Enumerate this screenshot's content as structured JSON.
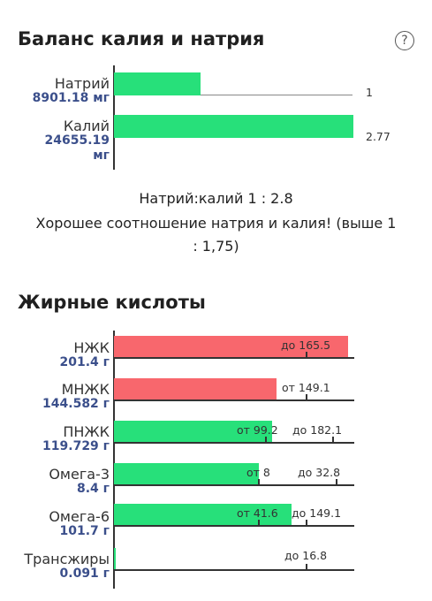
{
  "balance": {
    "title": "Баланс калия и натрия",
    "help_icon": "?",
    "rows": [
      {
        "name": "Натрий",
        "amount": "8901.18 мг",
        "ratio_label": "1"
      },
      {
        "name": "Калий",
        "amount_line1": "24655.19",
        "amount_line2": "мг",
        "ratio_label": "2.77"
      }
    ],
    "ratio_text": "Натрий:калий 1 : 2.8",
    "comment_line1": "Хорошее соотношение натрия и калия! (выше 1",
    "comment_line2": ": 1,75)"
  },
  "fatty": {
    "title": "Жирные кислоты",
    "rows": [
      {
        "name": "НЖК",
        "amount": "201.4 г",
        "limit_max": "до 165.5",
        "color": "#f8676d"
      },
      {
        "name": "МНЖК",
        "amount": "144.582 г",
        "limit_min": "от 149.1",
        "color": "#f8676d"
      },
      {
        "name": "ПНЖК",
        "amount": "119.729 г",
        "limit_min": "от 99.2",
        "limit_max": "до 182.1",
        "color": "#27e07a"
      },
      {
        "name": "Омега-3",
        "amount": "8.4 г",
        "limit_min": "от 8",
        "limit_max": "до 32.8",
        "color": "#27e07a"
      },
      {
        "name": "Омега-6",
        "amount": "101.7 г",
        "limit_min": "от 41.6",
        "limit_max": "до 149.1",
        "color": "#27e07a"
      },
      {
        "name": "Трансжиры",
        "amount": "0.091 г",
        "limit_max": "до 16.8",
        "color": "#27e07a"
      }
    ]
  }
}
